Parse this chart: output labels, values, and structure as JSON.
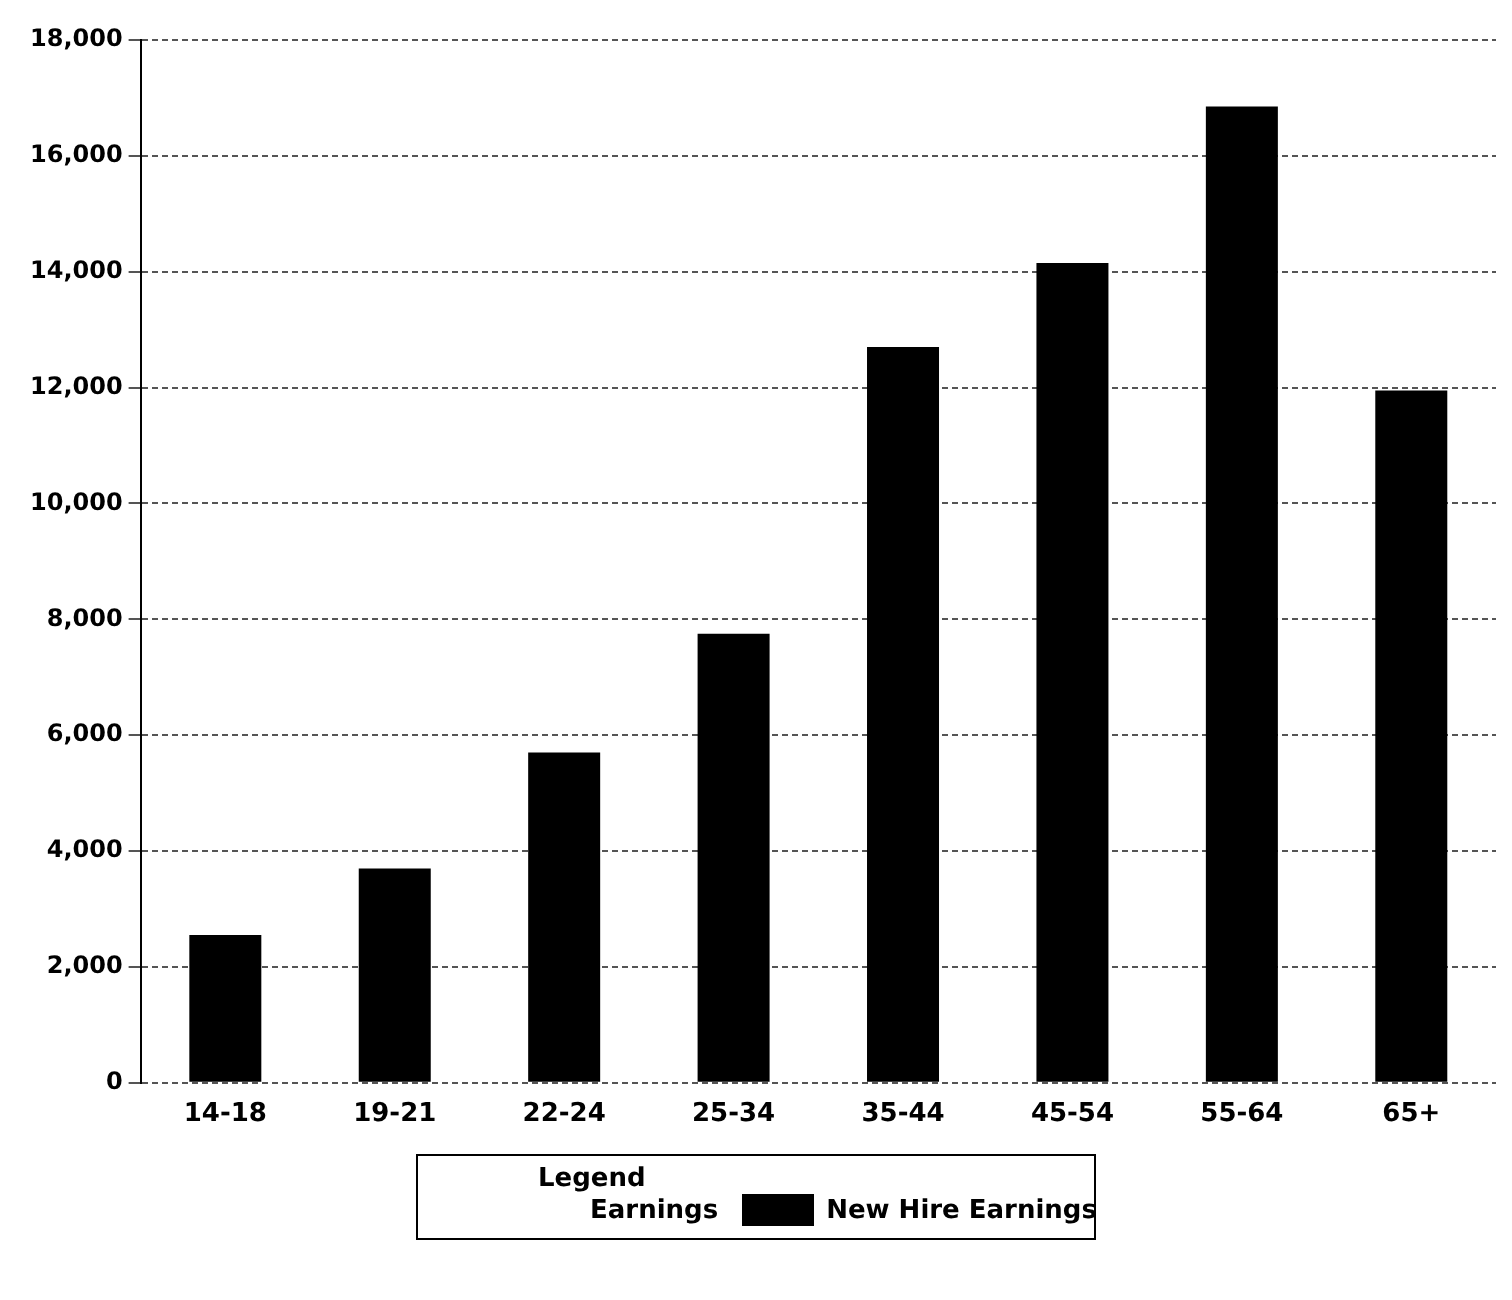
{
  "chart_data": {
    "type": "bar",
    "categories": [
      "14-18",
      "19-21",
      "22-24",
      "25-34",
      "35-44",
      "45-54",
      "55-64",
      "65+"
    ],
    "series": [
      {
        "name": "New Hire Earnings",
        "color": "#000000",
        "values": [
          2550,
          3700,
          5700,
          7750,
          12700,
          14150,
          16850,
          11950
        ]
      }
    ],
    "ylim": [
      0,
      18000
    ],
    "yticks": [
      0,
      {
        "value": 2000,
        "label": "2,000"
      },
      {
        "value": 4000,
        "label": "4,000"
      },
      {
        "value": 6000,
        "label": "6,000"
      },
      {
        "value": 8000,
        "label": "8,000"
      },
      {
        "value": 10000,
        "label": "10,000"
      },
      {
        "value": 12000,
        "label": "12,000"
      },
      {
        "value": 14000,
        "label": "14,000"
      },
      {
        "value": 16000,
        "label": "16,000"
      },
      {
        "value": 18000,
        "label": "18,000"
      }
    ],
    "grid": "y",
    "legend": "bottom",
    "legend_title": "Legend",
    "annotations": [
      "Earnings"
    ]
  }
}
